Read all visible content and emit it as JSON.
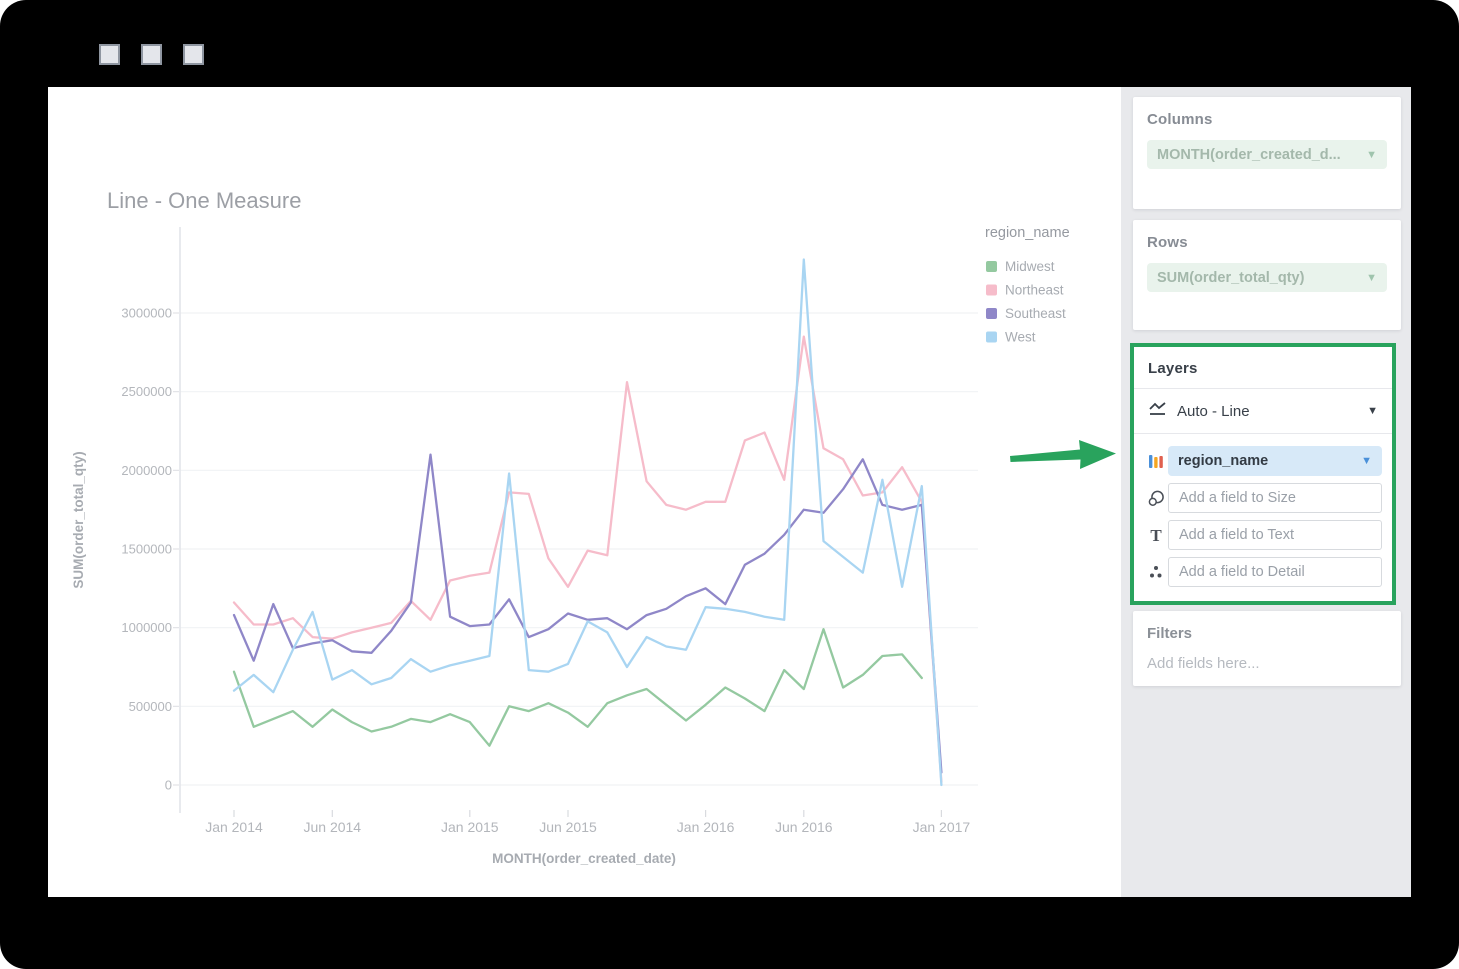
{
  "window": {
    "controls": [
      "square-1",
      "square-2",
      "square-3"
    ]
  },
  "sidebar": {
    "columns": {
      "header": "Columns",
      "pill": "MONTH(order_created_d...",
      "caret": "▼"
    },
    "rows": {
      "header": "Rows",
      "pill": "SUM(order_total_qty)",
      "caret": "▼"
    },
    "layers": {
      "header": "Layers",
      "chart_type_label": "Auto - Line",
      "color_field": "region_name",
      "size_placeholder": "Add a field to Size",
      "text_placeholder": "Add a field to Text",
      "detail_placeholder": "Add a field to Detail",
      "highlight_color": "#29a35d",
      "caret": "▼"
    },
    "filters": {
      "header": "Filters",
      "placeholder": "Add fields here..."
    }
  },
  "annotation": {
    "arrow_color": "#29a35d"
  },
  "chart_data": {
    "type": "line",
    "title": "Line - One Measure",
    "xlabel": "MONTH(order_created_date)",
    "ylabel": "SUM(order_total_qty)",
    "legend_title": "region_name",
    "x_unit": "month",
    "x_start": "Jan 2014",
    "x_end": "Jan 2017",
    "n_points": 37,
    "ylim": [
      0,
      3460000
    ],
    "y_ticks": [
      0,
      500000,
      1000000,
      1500000,
      2000000,
      2500000,
      3000000
    ],
    "x_ticks": [
      {
        "label": "Jan 2014",
        "month_index": 0
      },
      {
        "label": "Jun 2014",
        "month_index": 5
      },
      {
        "label": "Jan 2015",
        "month_index": 12
      },
      {
        "label": "Jun 2015",
        "month_index": 17
      },
      {
        "label": "Jan 2016",
        "month_index": 24
      },
      {
        "label": "Jun 2016",
        "month_index": 29
      },
      {
        "label": "Jan 2017",
        "month_index": 36
      }
    ],
    "grid": true,
    "legend_position": "right-top",
    "series": [
      {
        "name": "Midwest",
        "color": "#94c9a0",
        "values": [
          720000,
          370000,
          420000,
          470000,
          370000,
          480000,
          400000,
          340000,
          370000,
          420000,
          400000,
          450000,
          400000,
          250000,
          500000,
          470000,
          520000,
          460000,
          370000,
          520000,
          570000,
          610000,
          510000,
          410000,
          510000,
          620000,
          550000,
          470000,
          730000,
          610000,
          990000,
          620000,
          700000,
          820000,
          830000,
          680000,
          null
        ]
      },
      {
        "name": "Northeast",
        "color": "#f6bcca",
        "values": [
          1160000,
          1020000,
          1020000,
          1060000,
          940000,
          930000,
          970000,
          1000000,
          1030000,
          1170000,
          1050000,
          1300000,
          1330000,
          1350000,
          1860000,
          1850000,
          1440000,
          1260000,
          1490000,
          1460000,
          2560000,
          1930000,
          1780000,
          1750000,
          1800000,
          1800000,
          2190000,
          2240000,
          1940000,
          2850000,
          2140000,
          2070000,
          1840000,
          1860000,
          2020000,
          1800000,
          20000
        ]
      },
      {
        "name": "Southeast",
        "color": "#8f87c8",
        "values": [
          1080000,
          790000,
          1150000,
          870000,
          900000,
          920000,
          850000,
          840000,
          980000,
          1160000,
          2100000,
          1070000,
          1010000,
          1020000,
          1180000,
          940000,
          990000,
          1090000,
          1050000,
          1060000,
          990000,
          1080000,
          1120000,
          1200000,
          1250000,
          1150000,
          1400000,
          1470000,
          1590000,
          1750000,
          1730000,
          1880000,
          2070000,
          1780000,
          1750000,
          1780000,
          80000
        ]
      },
      {
        "name": "West",
        "color": "#a9d5f2",
        "values": [
          600000,
          700000,
          590000,
          860000,
          1100000,
          670000,
          730000,
          640000,
          680000,
          800000,
          720000,
          760000,
          790000,
          820000,
          1980000,
          730000,
          720000,
          770000,
          1040000,
          970000,
          750000,
          940000,
          880000,
          860000,
          1130000,
          1120000,
          1100000,
          1070000,
          1050000,
          3340000,
          1550000,
          1450000,
          1350000,
          1940000,
          1260000,
          1900000,
          0
        ]
      }
    ]
  }
}
